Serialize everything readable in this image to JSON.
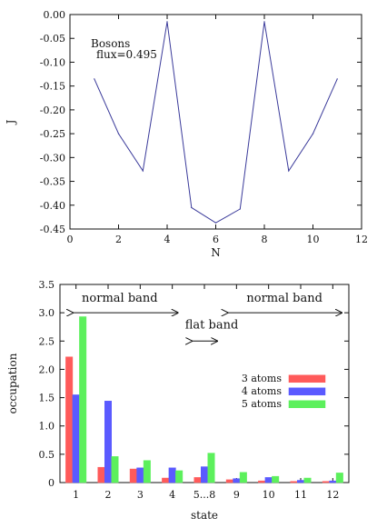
{
  "chart_data": [
    {
      "type": "line",
      "xlabel": "N",
      "ylabel": "J",
      "xlim": [
        0,
        12
      ],
      "ylim": [
        -0.45,
        0.0
      ],
      "xticks": [
        "0",
        "2",
        "4",
        "6",
        "8",
        "10",
        "12"
      ],
      "yticks": [
        "0.00",
        "-0.05",
        "-0.10",
        "-0.15",
        "-0.20",
        "-0.25",
        "-0.30",
        "-0.35",
        "-0.40",
        "-0.45"
      ],
      "annotation": {
        "line1": "Bosons",
        "line2": "flux=0.495"
      },
      "line_color": "#3a3a9a",
      "grid": false,
      "series": [
        {
          "x": [
            1,
            2,
            3,
            4,
            5,
            6,
            7,
            8,
            9,
            10,
            11
          ],
          "y": [
            -0.135,
            -0.25,
            -0.328,
            -0.015,
            -0.405,
            -0.437,
            -0.408,
            -0.015,
            -0.328,
            -0.25,
            -0.135
          ]
        }
      ]
    },
    {
      "type": "bar",
      "xlabel": "state",
      "ylabel": "occupation",
      "ylim": [
        0,
        3.5
      ],
      "yticks": [
        "0",
        "0.5",
        "1.0",
        "1.5",
        "2.0",
        "2.5",
        "3.0",
        "3.5"
      ],
      "categories": [
        "1",
        "2",
        "3",
        "4",
        "5...8",
        "9",
        "10",
        "11",
        "12"
      ],
      "grid": false,
      "legend_position": "right-middle",
      "band_labels": {
        "left": "normal band",
        "middle": "flat band",
        "right": "normal band"
      },
      "series": [
        {
          "name": "3 atoms",
          "color": "#ff5a5a",
          "values": [
            2.22,
            0.27,
            0.24,
            0.08,
            0.09,
            0.05,
            0.03,
            0.02,
            0.02
          ]
        },
        {
          "name": "4 atoms",
          "color": "#5a5aff",
          "values": [
            1.55,
            1.44,
            0.26,
            0.26,
            0.28,
            0.07,
            0.09,
            0.04,
            0.03
          ]
        },
        {
          "name": "5 atoms",
          "color": "#5cf05c",
          "values": [
            2.93,
            0.46,
            0.39,
            0.21,
            0.52,
            0.18,
            0.11,
            0.08,
            0.17
          ]
        }
      ]
    }
  ]
}
